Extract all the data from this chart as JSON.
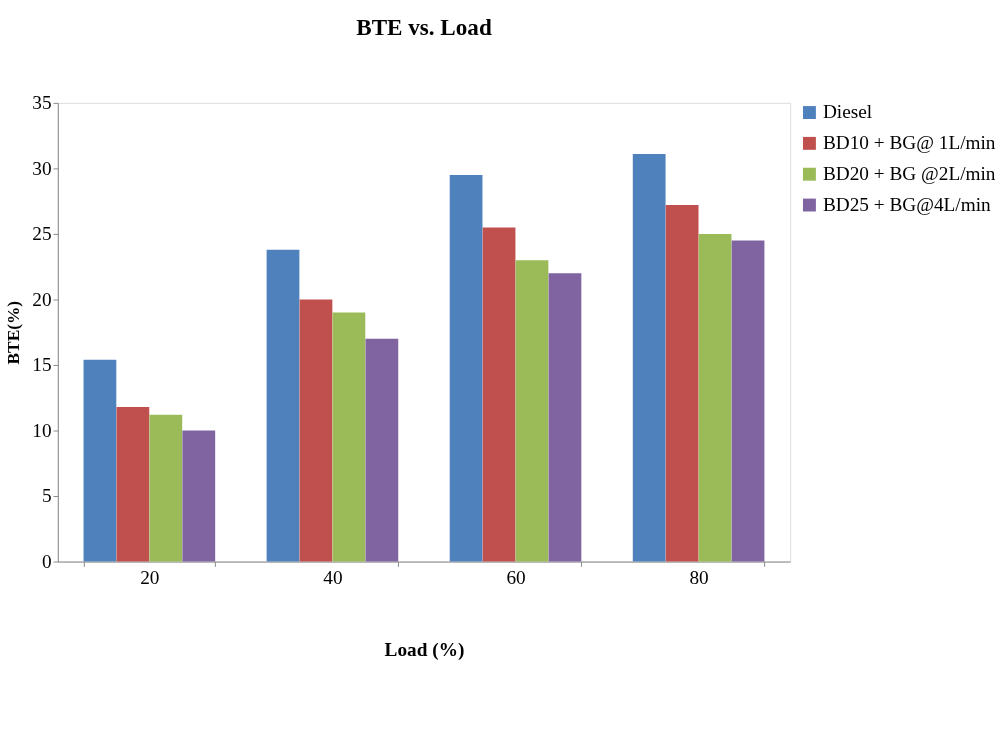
{
  "chart_data": {
    "type": "bar",
    "title": "BTE vs. Load",
    "xlabel": "Load (%)",
    "ylabel": "BTE(%)",
    "categories": [
      "20",
      "40",
      "60",
      "80"
    ],
    "series": [
      {
        "name": "Diesel",
        "color": "#4f81bd",
        "values": [
          15.4,
          23.8,
          29.5,
          31.1
        ]
      },
      {
        "name": "BD10 + BG@  1L/min",
        "color": "#c0504d",
        "values": [
          11.8,
          20.0,
          25.5,
          27.2
        ]
      },
      {
        "name": "BD20 + BG @2L/min",
        "color": "#9bbb59",
        "values": [
          11.2,
          19.0,
          23.0,
          25.0
        ]
      },
      {
        "name": "BD25 + BG@4L/min",
        "color": "#8064a2",
        "values": [
          10.0,
          17.0,
          22.0,
          24.5
        ]
      }
    ],
    "ylim": [
      0,
      35
    ],
    "yticks": [
      0,
      5,
      10,
      15,
      20,
      25,
      30,
      35
    ],
    "grid": false,
    "legend": "top right"
  }
}
